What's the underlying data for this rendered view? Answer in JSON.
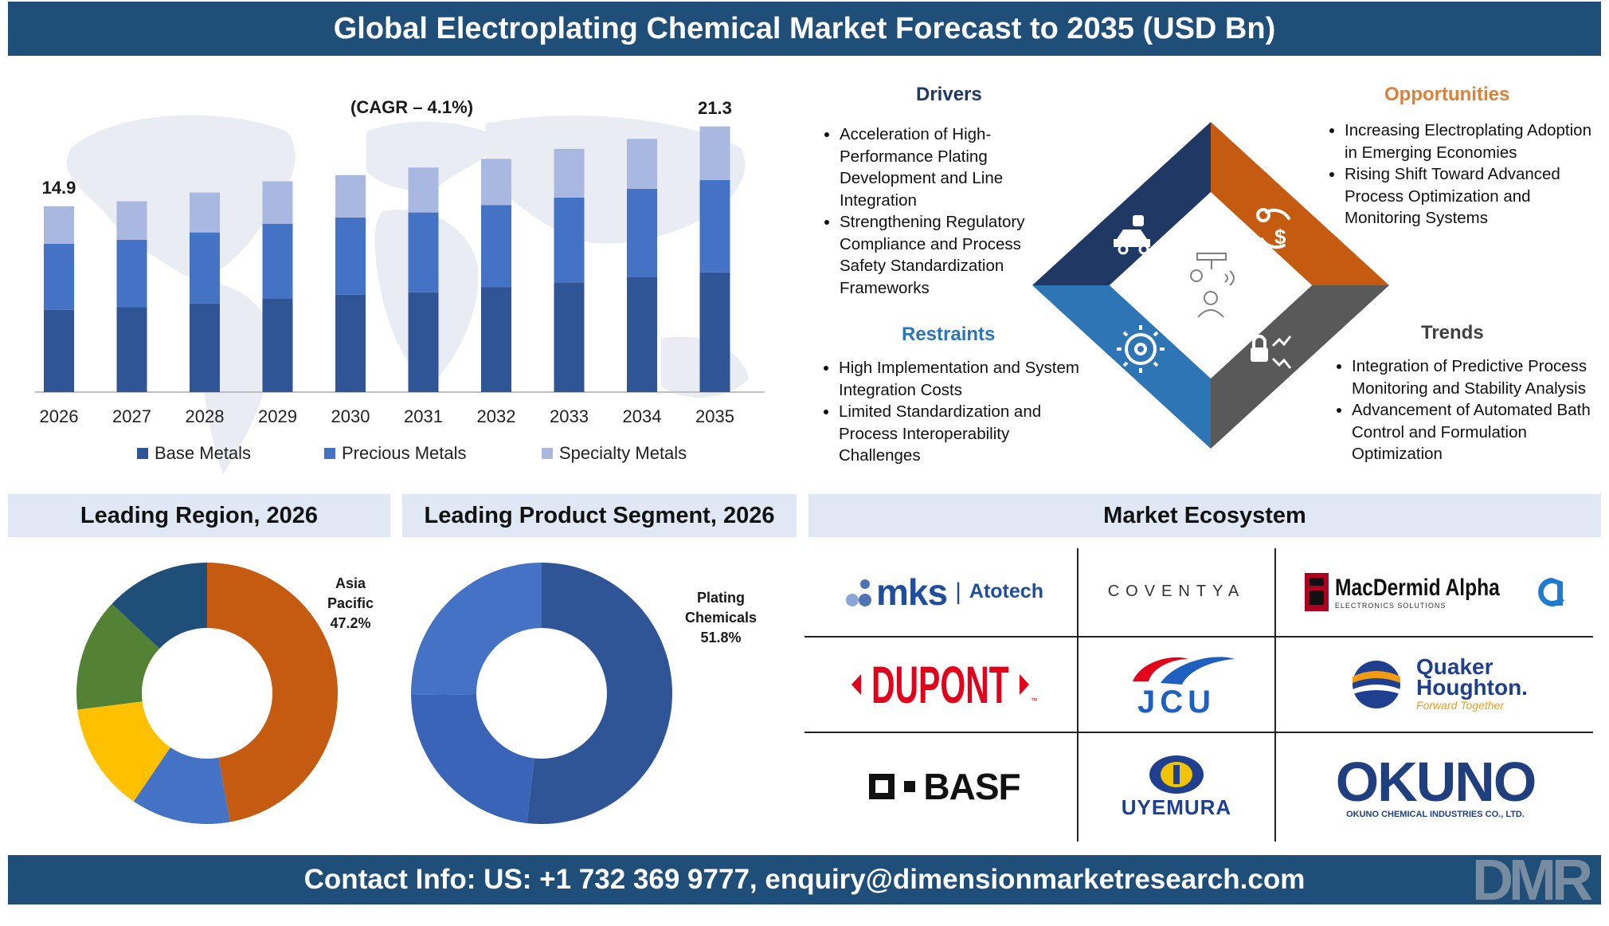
{
  "title": "Global Electroplating Chemical Market Forecast to 2035 (USD Bn)",
  "footer": "Contact Info: US: +1 732 369 9777, enquiry@dimensionmarketresearch.com",
  "brand": "DMR",
  "colors": {
    "banner": "#1f4e79",
    "base_metals": "#2f5597",
    "precious_metals": "#4472c4",
    "specialty_metals": "#a9b8e0",
    "drivers": "#1f3864",
    "opportunities": "#c55a11",
    "restraints": "#2e75b6",
    "trends": "#595959"
  },
  "chart_data": [
    {
      "type": "bar",
      "stacked": true,
      "categories": [
        "2026",
        "2027",
        "2028",
        "2029",
        "2030",
        "2031",
        "2032",
        "2033",
        "2034",
        "2035"
      ],
      "series": [
        {
          "name": "Base Metals",
          "values": [
            6.6,
            6.8,
            7.1,
            7.5,
            7.8,
            8.0,
            8.4,
            8.8,
            9.2,
            9.6
          ]
        },
        {
          "name": "Precious Metals",
          "values": [
            5.3,
            5.4,
            5.7,
            6.0,
            6.2,
            6.4,
            6.6,
            6.8,
            7.1,
            7.4
          ]
        },
        {
          "name": "Specialty Metals",
          "values": [
            3.0,
            3.1,
            3.2,
            3.4,
            3.4,
            3.6,
            3.7,
            3.9,
            4.0,
            4.3
          ]
        }
      ],
      "data_labels": {
        "2026": "14.9",
        "2035": "21.3"
      },
      "annotation": "(CAGR – 4.1%)",
      "ylim": [
        0,
        23
      ],
      "legend_position": "bottom"
    },
    {
      "type": "pie",
      "donut": true,
      "title": "Leading Region, 2026",
      "values": [
        47.2,
        12.3,
        13.5,
        14.0,
        13.0
      ],
      "colors": [
        "#c55a11",
        "#4472c4",
        "#ffc000",
        "#548235",
        "#1f4e79"
      ],
      "callout": {
        "label": "Asia Pacific",
        "value": "47.2%"
      }
    },
    {
      "type": "pie",
      "donut": true,
      "title": "Leading Product Segment, 2026",
      "values": [
        51.8,
        23.0,
        25.2
      ],
      "colors": [
        "#2f5597",
        "#3a64b8",
        "#4472c4"
      ],
      "callout": {
        "label": "Plating Chemicals",
        "value": "51.8%"
      }
    }
  ],
  "drivers": {
    "title": "Drivers",
    "items": [
      "Acceleration of High-Performance Plating Development and Line Integration",
      "Strengthening Regulatory Compliance and Process Safety Standardization Frameworks"
    ]
  },
  "opportunities": {
    "title": "Opportunities",
    "items": [
      "Increasing Electroplating Adoption in Emerging Economies",
      "Rising Shift Toward Advanced Process Optimization and Monitoring Systems"
    ]
  },
  "restraints": {
    "title": "Restraints",
    "items": [
      "High Implementation and System Integration Costs",
      "Limited Standardization and Process Interoperability Challenges"
    ]
  },
  "trends": {
    "title": "Trends",
    "items": [
      "Integration of Predictive Process Monitoring and Stability Analysis",
      "Advancement of Automated Bath Control and Formulation Optimization"
    ]
  },
  "ecosystem": {
    "title": "Market Ecosystem",
    "logos": [
      {
        "name": "mks | Atotech",
        "mks": "mks",
        "sep": "|",
        "atotech": "Atotech"
      },
      {
        "name": "COVENTYA",
        "text": "COVENTYA"
      },
      {
        "name": "MacDermid Alpha",
        "text": "MacDermid Alpha",
        "sub": "ELECTRONICS SOLUTIONS"
      },
      {
        "name": "DUPONT",
        "text": "DUPONT",
        "tm": "™"
      },
      {
        "name": "JCU",
        "text": "JCU"
      },
      {
        "name": "Quaker Houghton",
        "line1": "Quaker",
        "line2": "Houghton.",
        "tagline": "Forward Together"
      },
      {
        "name": "BASF",
        "text": "BASF"
      },
      {
        "name": "UYEMURA",
        "text": "UYEMURA"
      },
      {
        "name": "OKUNO",
        "text": "OKUNO",
        "sub": "OKUNO CHEMICAL INDUSTRIES CO., LTD."
      }
    ]
  }
}
